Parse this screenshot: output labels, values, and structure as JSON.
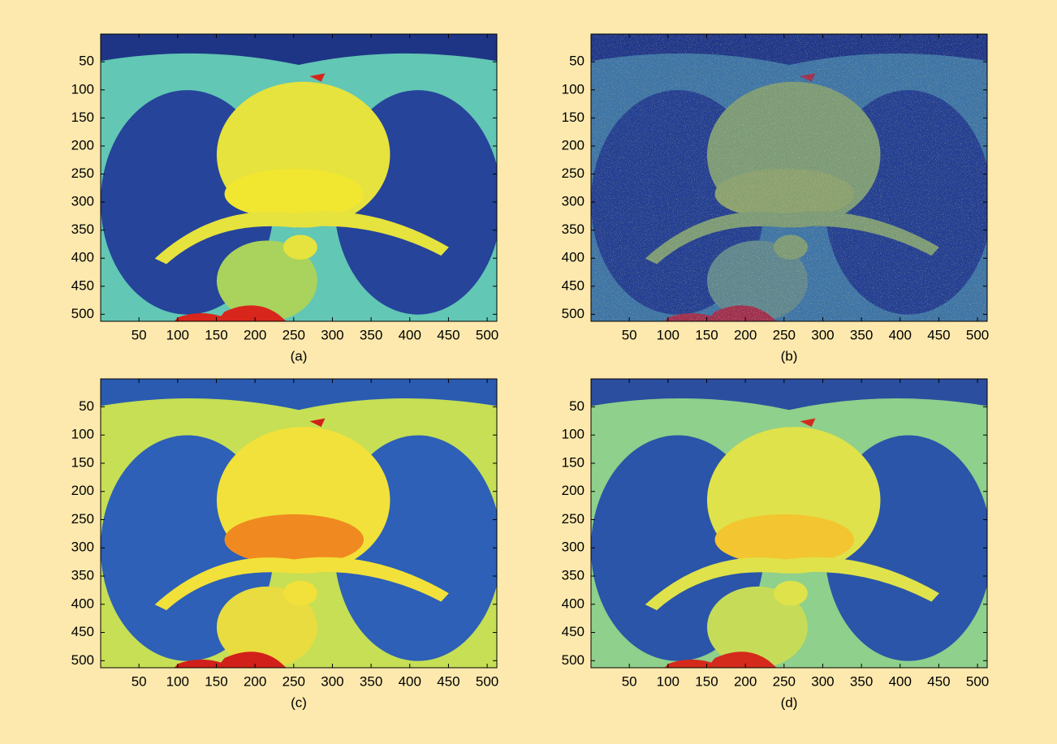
{
  "chart_data": [
    {
      "type": "image",
      "caption": "(a)",
      "xlim": [
        0.5,
        512.5
      ],
      "ylim": [
        512.5,
        0.5
      ],
      "xticks": [
        50,
        100,
        150,
        200,
        250,
        300,
        350,
        400,
        450,
        500
      ],
      "yticks": [
        50,
        100,
        150,
        200,
        250,
        300,
        350,
        400,
        450,
        500
      ]
    },
    {
      "type": "image",
      "caption": "(b)",
      "xlim": [
        0.5,
        512.5
      ],
      "ylim": [
        512.5,
        0.5
      ],
      "xticks": [
        50,
        100,
        150,
        200,
        250,
        300,
        350,
        400,
        450,
        500
      ],
      "yticks": [
        50,
        100,
        150,
        200,
        250,
        300,
        350,
        400,
        450,
        500
      ]
    },
    {
      "type": "image",
      "caption": "(c)",
      "xlim": [
        0.5,
        512.5
      ],
      "ylim": [
        512.5,
        0.5
      ],
      "xticks": [
        50,
        100,
        150,
        200,
        250,
        300,
        350,
        400,
        450,
        500
      ],
      "yticks": [
        50,
        100,
        150,
        200,
        250,
        300,
        350,
        400,
        450,
        500
      ]
    },
    {
      "type": "image",
      "caption": "(d)",
      "xlim": [
        0.5,
        512.5
      ],
      "ylim": [
        512.5,
        0.5
      ],
      "xticks": [
        50,
        100,
        150,
        200,
        250,
        300,
        350,
        400,
        450,
        500
      ],
      "yticks": [
        50,
        100,
        150,
        200,
        250,
        300,
        350,
        400,
        450,
        500
      ]
    }
  ]
}
